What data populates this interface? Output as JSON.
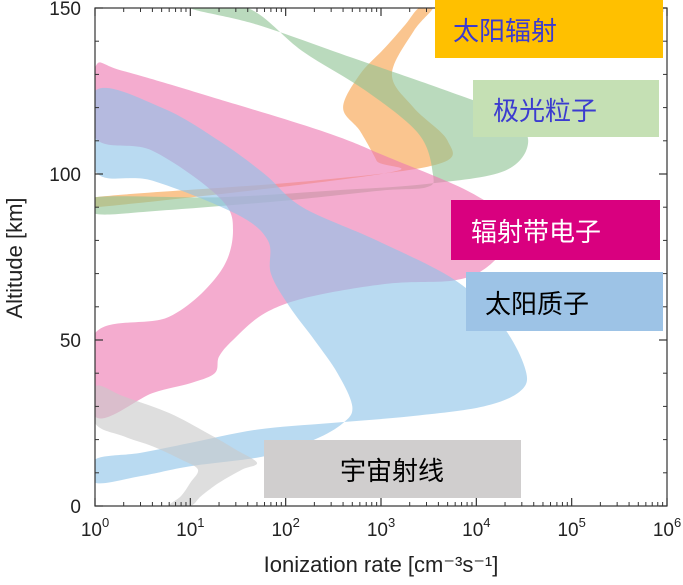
{
  "chart_data": {
    "type": "area",
    "xlabel": "Ionization rate [cm⁻³s⁻¹]",
    "ylabel": "Altitude [km]",
    "xscale": "log",
    "xlim": [
      1,
      1000000
    ],
    "ylim": [
      0,
      150
    ],
    "x_ticks": [
      {
        "value": 1,
        "base": "10",
        "exp": "0"
      },
      {
        "value": 10,
        "base": "10",
        "exp": "1"
      },
      {
        "value": 100,
        "base": "10",
        "exp": "2"
      },
      {
        "value": 1000,
        "base": "10",
        "exp": "3"
      },
      {
        "value": 10000,
        "base": "10",
        "exp": "4"
      },
      {
        "value": 100000,
        "base": "10",
        "exp": "5"
      },
      {
        "value": 1000000,
        "base": "10",
        "exp": "6"
      }
    ],
    "y_ticks": [
      "0",
      "50",
      "100",
      "150"
    ],
    "series": [
      {
        "name": "太阳辐射",
        "color": "#f7a24b",
        "legend_bg": "#ffc000",
        "legend_text_color": "#3b3bd0",
        "polygon": [
          [
            2500,
            150
          ],
          [
            1800,
            145
          ],
          [
            1100,
            138
          ],
          [
            600,
            130
          ],
          [
            400,
            120
          ],
          [
            600,
            113
          ],
          [
            900,
            104
          ],
          [
            1000,
            100
          ],
          [
            1,
            90
          ],
          [
            1,
            93
          ],
          [
            200,
            98
          ],
          [
            4000,
            103
          ],
          [
            5000,
            110
          ],
          [
            2200,
            120
          ],
          [
            1300,
            130
          ],
          [
            2200,
            143
          ],
          [
            3500,
            150
          ]
        ]
      },
      {
        "name": "极光粒子",
        "color": "#8fc495",
        "legend_bg": "#c5e0b4",
        "legend_text_color": "#3b3bd0",
        "polygon": [
          [
            10,
            150
          ],
          [
            50,
            145
          ],
          [
            500,
            135
          ],
          [
            5000,
            125
          ],
          [
            20000,
            118
          ],
          [
            35000,
            110
          ],
          [
            20000,
            101
          ],
          [
            3000,
            97
          ],
          [
            300,
            95
          ],
          [
            20,
            93
          ],
          [
            1,
            93
          ],
          [
            1,
            88
          ],
          [
            5,
            89
          ],
          [
            100,
            92
          ],
          [
            1000,
            95
          ],
          [
            3000,
            96
          ],
          [
            3500,
            100
          ],
          [
            2500,
            112
          ],
          [
            700,
            125
          ],
          [
            150,
            137
          ],
          [
            40,
            150
          ]
        ]
      },
      {
        "name": "辐射带电子",
        "color": "#ee79b1",
        "legend_bg": "#d9007f",
        "legend_text_color": "#ffffff",
        "polygon": [
          [
            1,
            132
          ],
          [
            2,
            131
          ],
          [
            30,
            121
          ],
          [
            300,
            112
          ],
          [
            1200,
            105
          ],
          [
            8000,
            95
          ],
          [
            20000,
            87
          ],
          [
            22000,
            80
          ],
          [
            13000,
            72
          ],
          [
            6000,
            68
          ],
          [
            1200,
            67
          ],
          [
            180,
            63
          ],
          [
            60,
            58
          ],
          [
            28,
            50
          ],
          [
            20,
            45
          ],
          [
            18,
            40
          ],
          [
            10,
            37
          ],
          [
            4,
            34
          ],
          [
            1,
            27
          ],
          [
            1,
            52
          ],
          [
            6,
            57
          ],
          [
            20,
            70
          ],
          [
            28,
            83
          ],
          [
            20,
            93
          ],
          [
            4,
            107
          ],
          [
            1,
            111
          ]
        ]
      },
      {
        "name": "太阳质子",
        "color": "#8ec3e8",
        "legend_bg": "#9dc3e6",
        "legend_text_color": "#000000",
        "polygon": [
          [
            1,
            125
          ],
          [
            5,
            120
          ],
          [
            20,
            110
          ],
          [
            60,
            100
          ],
          [
            150,
            90
          ],
          [
            900,
            80
          ],
          [
            6000,
            68
          ],
          [
            18000,
            55
          ],
          [
            32000,
            42
          ],
          [
            30000,
            35
          ],
          [
            12000,
            30
          ],
          [
            2000,
            27
          ],
          [
            300,
            25
          ],
          [
            50,
            23
          ],
          [
            10,
            19
          ],
          [
            3,
            16
          ],
          [
            1,
            14
          ],
          [
            1,
            7
          ],
          [
            3,
            9
          ],
          [
            10,
            12
          ],
          [
            60,
            15
          ],
          [
            200,
            20
          ],
          [
            400,
            25
          ],
          [
            500,
            30
          ],
          [
            350,
            40
          ],
          [
            200,
            50
          ],
          [
            110,
            60
          ],
          [
            70,
            70
          ],
          [
            65,
            80
          ],
          [
            30,
            88
          ],
          [
            4,
            98
          ],
          [
            1,
            101
          ]
        ]
      },
      {
        "name": "宇宙射线",
        "color": "#c9c9c9",
        "legend_bg": "#d0cece",
        "legend_text_color": "#000000",
        "polygon": [
          [
            1,
            36
          ],
          [
            2,
            33
          ],
          [
            6,
            28
          ],
          [
            15,
            22
          ],
          [
            30,
            17
          ],
          [
            50,
            13
          ],
          [
            35,
            11
          ],
          [
            20,
            7
          ],
          [
            13,
            3
          ],
          [
            10,
            0
          ],
          [
            6,
            0
          ],
          [
            8,
            3
          ],
          [
            10,
            7
          ],
          [
            12,
            11
          ],
          [
            8,
            14
          ],
          [
            4,
            18
          ],
          [
            2,
            21
          ],
          [
            1,
            25
          ]
        ]
      }
    ]
  }
}
